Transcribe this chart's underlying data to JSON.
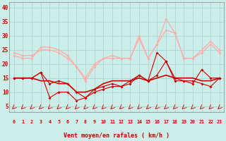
{
  "x": [
    0,
    1,
    2,
    3,
    4,
    5,
    6,
    7,
    8,
    9,
    10,
    11,
    12,
    13,
    14,
    15,
    16,
    17,
    18,
    19,
    20,
    21,
    22,
    23
  ],
  "line_rafales1": [
    23,
    22,
    22,
    26,
    26,
    25,
    23,
    19,
    15,
    20,
    22,
    23,
    22,
    22,
    30,
    22,
    27,
    36,
    31,
    22,
    22,
    25,
    28,
    25
  ],
  "line_rafales2": [
    24,
    23,
    23,
    25,
    25,
    24,
    22,
    19,
    14,
    19,
    22,
    22,
    22,
    22,
    29,
    22,
    27,
    32,
    31,
    22,
    22,
    24,
    27,
    24
  ],
  "line_moyen1": [
    15,
    15,
    15,
    17,
    8,
    10,
    10,
    7,
    8,
    10,
    11,
    12,
    12,
    14,
    16,
    14,
    24,
    21,
    15,
    14,
    13,
    18,
    15,
    15
  ],
  "line_moyen2": [
    15,
    15,
    15,
    17,
    13,
    14,
    13,
    10,
    8,
    11,
    12,
    13,
    12,
    13,
    16,
    14,
    16,
    21,
    14,
    14,
    14,
    13,
    12,
    15
  ],
  "line_moyen3": [
    15,
    15,
    15,
    14,
    14,
    13,
    13,
    10,
    10,
    11,
    13,
    14,
    14,
    14,
    15,
    14,
    15,
    16,
    15,
    15,
    15,
    14,
    14,
    15
  ],
  "bg_color": "#cceee8",
  "grid_color": "#aacccc",
  "rafales_color": "#ffaaaa",
  "moyen_color1": "#cc0000",
  "moyen_color2": "#cc0000",
  "moyen_color3": "#cc0000",
  "xlabel": "Vent moyen/en rafales ( km/h )",
  "yticks": [
    5,
    10,
    15,
    20,
    25,
    30,
    35,
    40
  ],
  "ylim": [
    3,
    42
  ],
  "xlim": [
    -0.5,
    23.5
  ]
}
